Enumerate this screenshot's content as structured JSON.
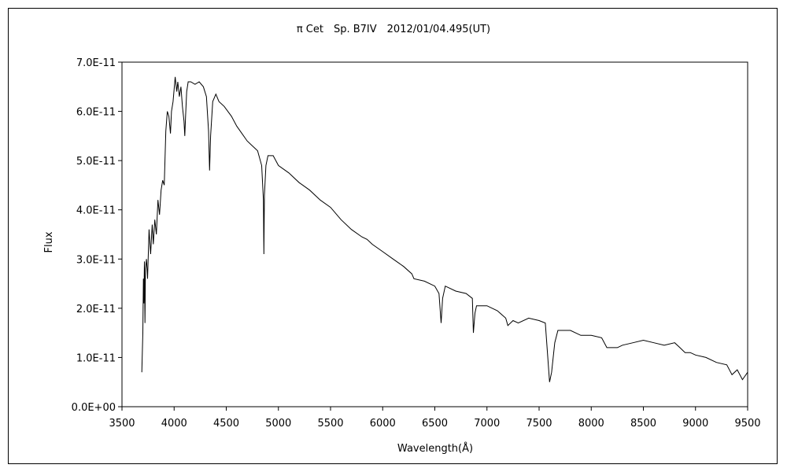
{
  "chart_data": {
    "type": "line",
    "title": "π Cet　Sp. B7IV　2012/01/04.495(UT)",
    "xlabel": "Wavelength(Å)",
    "ylabel": "Flux",
    "xlim": [
      3500,
      9500
    ],
    "ylim": [
      0,
      7e-11
    ],
    "x_ticks": [
      3500,
      4000,
      4500,
      5000,
      5500,
      6000,
      6500,
      7000,
      7500,
      8000,
      8500,
      9000,
      9500
    ],
    "x_tick_labels": [
      "3500",
      "4000",
      "4500",
      "5000",
      "5500",
      "6000",
      "6500",
      "7000",
      "7500",
      "8000",
      "8500",
      "9000",
      "9500"
    ],
    "y_ticks": [
      0,
      1e-11,
      2e-11,
      3e-11,
      4e-11,
      5e-11,
      6e-11,
      7e-11
    ],
    "y_tick_labels": [
      "0.0E+00",
      "1.0E-11",
      "2.0E-11",
      "3.0E-11",
      "4.0E-11",
      "5.0E-11",
      "6.0E-11",
      "7.0E-11"
    ],
    "grid": false,
    "legend": "none",
    "series": [
      {
        "color": "#000000",
        "points": [
          [
            3690,
            7e-12
          ],
          [
            3700,
            1.5e-11
          ],
          [
            3705,
            2.6e-11
          ],
          [
            3710,
            2.1e-11
          ],
          [
            3715,
            2.95e-11
          ],
          [
            3720,
            1.7e-11
          ],
          [
            3725,
            2.8e-11
          ],
          [
            3735,
            3e-11
          ],
          [
            3745,
            2.6e-11
          ],
          [
            3760,
            3.6e-11
          ],
          [
            3775,
            3.1e-11
          ],
          [
            3790,
            3.7e-11
          ],
          [
            3800,
            3.3e-11
          ],
          [
            3815,
            3.8e-11
          ],
          [
            3830,
            3.5e-11
          ],
          [
            3845,
            4.2e-11
          ],
          [
            3860,
            3.9e-11
          ],
          [
            3875,
            4.4e-11
          ],
          [
            3890,
            4.6e-11
          ],
          [
            3905,
            4.5e-11
          ],
          [
            3920,
            5.6e-11
          ],
          [
            3935,
            6e-11
          ],
          [
            3950,
            5.9e-11
          ],
          [
            3965,
            5.55e-11
          ],
          [
            3975,
            6e-11
          ],
          [
            3990,
            6.2e-11
          ],
          [
            4010,
            6.7e-11
          ],
          [
            4025,
            6.4e-11
          ],
          [
            4035,
            6.6e-11
          ],
          [
            4050,
            6.3e-11
          ],
          [
            4065,
            6.5e-11
          ],
          [
            4080,
            6.1e-11
          ],
          [
            4095,
            5.8e-11
          ],
          [
            4102,
            5.5e-11
          ],
          [
            4110,
            5.9e-11
          ],
          [
            4120,
            6.4e-11
          ],
          [
            4135,
            6.6e-11
          ],
          [
            4160,
            6.6e-11
          ],
          [
            4200,
            6.55e-11
          ],
          [
            4240,
            6.6e-11
          ],
          [
            4280,
            6.5e-11
          ],
          [
            4310,
            6.3e-11
          ],
          [
            4330,
            5.6e-11
          ],
          [
            4340,
            4.8e-11
          ],
          [
            4350,
            5.5e-11
          ],
          [
            4370,
            6.2e-11
          ],
          [
            4400,
            6.35e-11
          ],
          [
            4430,
            6.2e-11
          ],
          [
            4480,
            6.1e-11
          ],
          [
            4550,
            5.9e-11
          ],
          [
            4600,
            5.7e-11
          ],
          [
            4650,
            5.55e-11
          ],
          [
            4700,
            5.4e-11
          ],
          [
            4750,
            5.3e-11
          ],
          [
            4800,
            5.2e-11
          ],
          [
            4840,
            4.9e-11
          ],
          [
            4856,
            4.2e-11
          ],
          [
            4861,
            3.1e-11
          ],
          [
            4866,
            4.3e-11
          ],
          [
            4880,
            4.9e-11
          ],
          [
            4900,
            5.1e-11
          ],
          [
            4950,
            5.1e-11
          ],
          [
            5000,
            4.9e-11
          ],
          [
            5100,
            4.75e-11
          ],
          [
            5200,
            4.55e-11
          ],
          [
            5300,
            4.4e-11
          ],
          [
            5400,
            4.2e-11
          ],
          [
            5500,
            4.05e-11
          ],
          [
            5600,
            3.8e-11
          ],
          [
            5700,
            3.6e-11
          ],
          [
            5800,
            3.45e-11
          ],
          [
            5850,
            3.4e-11
          ],
          [
            5900,
            3.3e-11
          ],
          [
            6000,
            3.15e-11
          ],
          [
            6100,
            3e-11
          ],
          [
            6200,
            2.85e-11
          ],
          [
            6280,
            2.7e-11
          ],
          [
            6300,
            2.6e-11
          ],
          [
            6400,
            2.55e-11
          ],
          [
            6500,
            2.45e-11
          ],
          [
            6540,
            2.3e-11
          ],
          [
            6560,
            1.7e-11
          ],
          [
            6575,
            2.2e-11
          ],
          [
            6600,
            2.45e-11
          ],
          [
            6700,
            2.35e-11
          ],
          [
            6800,
            2.3e-11
          ],
          [
            6860,
            2.2e-11
          ],
          [
            6870,
            1.5e-11
          ],
          [
            6885,
            1.9e-11
          ],
          [
            6900,
            2.05e-11
          ],
          [
            7000,
            2.05e-11
          ],
          [
            7100,
            1.95e-11
          ],
          [
            7180,
            1.8e-11
          ],
          [
            7200,
            1.65e-11
          ],
          [
            7250,
            1.75e-11
          ],
          [
            7300,
            1.7e-11
          ],
          [
            7400,
            1.8e-11
          ],
          [
            7500,
            1.75e-11
          ],
          [
            7560,
            1.7e-11
          ],
          [
            7600,
            5e-12
          ],
          [
            7620,
            7e-12
          ],
          [
            7650,
            1.3e-11
          ],
          [
            7680,
            1.55e-11
          ],
          [
            7800,
            1.55e-11
          ],
          [
            7900,
            1.45e-11
          ],
          [
            8000,
            1.45e-11
          ],
          [
            8100,
            1.4e-11
          ],
          [
            8150,
            1.2e-11
          ],
          [
            8250,
            1.2e-11
          ],
          [
            8300,
            1.25e-11
          ],
          [
            8400,
            1.3e-11
          ],
          [
            8500,
            1.35e-11
          ],
          [
            8600,
            1.3e-11
          ],
          [
            8700,
            1.25e-11
          ],
          [
            8800,
            1.3e-11
          ],
          [
            8850,
            1.2e-11
          ],
          [
            8900,
            1.1e-11
          ],
          [
            8950,
            1.1e-11
          ],
          [
            9000,
            1.05e-11
          ],
          [
            9100,
            1e-11
          ],
          [
            9200,
            9e-12
          ],
          [
            9300,
            8.5e-12
          ],
          [
            9350,
            6.5e-12
          ],
          [
            9400,
            7.5e-12
          ],
          [
            9450,
            5.5e-12
          ],
          [
            9500,
            7e-12
          ]
        ]
      }
    ]
  }
}
